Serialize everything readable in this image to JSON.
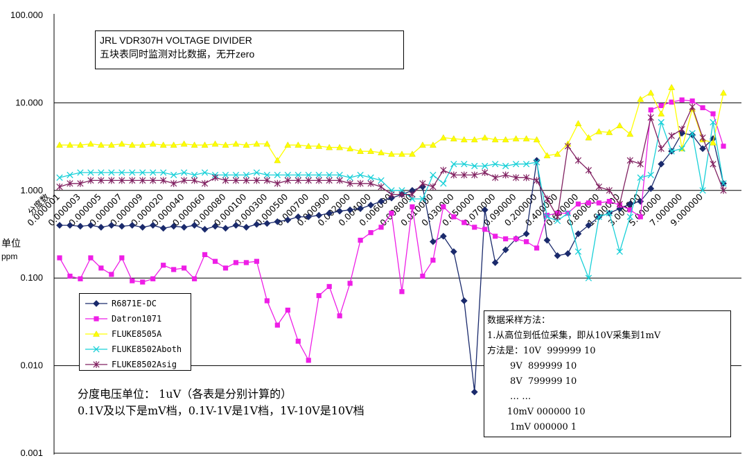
{
  "chart_data": {
    "type": "line",
    "yscale": "log",
    "ylim": [
      0.001,
      100
    ],
    "ytick_labels": [
      "100.000",
      "10.000",
      "1.000",
      "0.100",
      "0.010",
      "0.001"
    ],
    "ylabel": "单位",
    "yunit": "ppm",
    "x_first_label": "分度数",
    "x_tick_labels": [
      "0.000001",
      "0.000003",
      "0.000005",
      "0.000007",
      "0.000009",
      "0.000020",
      "0.000040",
      "0.000060",
      "0.000080",
      "0.000100",
      "0.000300",
      "0.000500",
      "0.000700",
      "0.000900",
      "0.002000",
      "0.004000",
      "0.006000",
      "0.008000",
      "0.010000",
      "0.030000",
      "0.050000",
      "0.070000",
      "0.090000",
      "0.200000",
      "0.400000",
      "0.600000",
      "0.800000",
      "1.000000",
      "3.000000",
      "5.000000",
      "7.000000",
      "9.000000"
    ],
    "series": [
      {
        "name": "R6871E-DC",
        "color": "#1a2a6c",
        "marker": "diamond",
        "values": [
          0.4,
          0.4,
          0.39,
          0.4,
          0.38,
          0.4,
          0.39,
          0.4,
          0.38,
          0.4,
          0.37,
          0.39,
          0.38,
          0.4,
          0.36,
          0.39,
          0.37,
          0.4,
          0.38,
          0.41,
          0.42,
          0.44,
          0.46,
          0.5,
          0.5,
          0.52,
          0.55,
          0.58,
          0.6,
          0.62,
          0.68,
          0.75,
          0.82,
          0.9,
          1.0,
          1.1,
          0.26,
          0.3,
          0.2,
          0.055,
          0.005,
          0.6,
          0.15,
          0.21,
          0.28,
          0.32,
          2.2,
          0.27,
          0.18,
          0.19,
          0.32,
          0.4,
          0.5,
          0.55,
          0.62,
          0.7,
          0.75,
          1.05,
          2.0,
          2.8,
          4.5,
          4.3,
          3.0,
          3.9,
          1.2
        ]
      },
      {
        "name": "Datron1071",
        "color": "#ee1ee6",
        "marker": "square",
        "values": [
          0.17,
          0.105,
          0.098,
          0.17,
          0.13,
          0.11,
          0.17,
          0.093,
          0.09,
          0.098,
          0.14,
          0.125,
          0.13,
          0.098,
          0.185,
          0.155,
          0.13,
          0.15,
          0.15,
          0.155,
          0.055,
          0.029,
          0.043,
          0.019,
          0.0115,
          0.063,
          0.08,
          0.037,
          0.087,
          0.27,
          0.33,
          0.38,
          0.55,
          0.07,
          0.65,
          0.105,
          0.16,
          0.65,
          0.5,
          0.43,
          0.38,
          0.36,
          0.3,
          0.28,
          0.28,
          0.26,
          0.22,
          0.52,
          0.55,
          0.55,
          0.7,
          0.72,
          0.72,
          0.75,
          0.68,
          0.6,
          0.5,
          8.3,
          9.3,
          10.2,
          10.8,
          10.5,
          8.8,
          7.5,
          3.2
        ]
      },
      {
        "name": "FLUKE8505A",
        "color": "#ffff00",
        "marker": "triangle",
        "values": [
          3.3,
          3.3,
          3.3,
          3.4,
          3.3,
          3.3,
          3.4,
          3.3,
          3.3,
          3.4,
          3.3,
          3.3,
          3.4,
          3.3,
          3.3,
          3.4,
          3.3,
          3.4,
          3.3,
          3.4,
          3.4,
          2.2,
          3.3,
          3.3,
          3.2,
          3.2,
          3.1,
          3.1,
          3.0,
          2.8,
          2.8,
          2.7,
          2.6,
          2.6,
          2.6,
          3.3,
          3.3,
          4.0,
          3.9,
          3.8,
          3.8,
          4.0,
          3.8,
          3.8,
          3.9,
          3.9,
          3.8,
          2.5,
          2.6,
          3.4,
          5.8,
          4.0,
          4.7,
          4.6,
          5.5,
          4.4,
          11.0,
          13.0,
          7.5,
          15.0,
          3.0,
          8.5,
          3.8,
          3.5,
          13.0
        ]
      },
      {
        "name": "FLUKE8502Aboth",
        "color": "#18d0d8",
        "marker": "x",
        "values": [
          1.4,
          1.5,
          1.6,
          1.6,
          1.6,
          1.6,
          1.6,
          1.6,
          1.6,
          1.6,
          1.6,
          1.5,
          1.6,
          1.5,
          1.6,
          1.5,
          1.5,
          1.5,
          1.5,
          1.6,
          1.5,
          1.5,
          1.5,
          1.5,
          1.5,
          1.5,
          1.5,
          1.5,
          1.4,
          1.5,
          1.4,
          1.3,
          1.0,
          1.0,
          0.8,
          0.8,
          1.5,
          1.2,
          2.0,
          2.0,
          1.9,
          1.9,
          2.0,
          1.9,
          2.0,
          2.0,
          2.1,
          0.5,
          0.45,
          0.55,
          0.2,
          0.1,
          0.5,
          0.55,
          0.2,
          0.5,
          1.4,
          1.5,
          6.0,
          2.8,
          3.0,
          4.5,
          1.0,
          6.0,
          1.2
        ]
      },
      {
        "name": "FLUKE8502Asig",
        "color": "#802060",
        "marker": "star",
        "values": [
          1.1,
          1.2,
          1.2,
          1.3,
          1.3,
          1.3,
          1.3,
          1.3,
          1.3,
          1.3,
          1.3,
          1.2,
          1.3,
          1.3,
          1.2,
          1.4,
          1.3,
          1.3,
          1.3,
          1.3,
          1.3,
          1.2,
          1.3,
          1.3,
          1.3,
          1.3,
          1.3,
          1.3,
          1.2,
          1.2,
          1.2,
          1.1,
          0.9,
          0.9,
          0.9,
          1.2,
          1.1,
          1.7,
          1.5,
          1.5,
          1.5,
          1.6,
          1.4,
          1.5,
          1.4,
          1.4,
          1.3,
          0.8,
          0.5,
          3.2,
          2.2,
          1.7,
          1.1,
          1.0,
          0.7,
          2.2,
          2.0,
          6.8,
          3.0,
          4.2,
          5.0,
          9.0,
          4.0,
          2.0,
          1.0
        ]
      }
    ]
  },
  "title_box": {
    "line1": "JRL VDR307H VOLTAGE DIVIDER",
    "line2": "五块表同时监测对比数据，无开zero"
  },
  "unit_note": {
    "line1": "分度电压单位： 1uV（各表是分别计算的）",
    "line2": "0.1V及以下是mV档，0.1V-1V是1V档，1V-10V是10V档"
  },
  "method_box": {
    "lines": [
      "数据采样方法：",
      "1.从高位到低位采集，即从10V采集到1mV",
      "方法是：10V  999999 10",
      "        9V  899999 10",
      "        8V  799999 10",
      "        … …",
      "       10mV 000000 10",
      "        1mV 000000 1"
    ]
  }
}
